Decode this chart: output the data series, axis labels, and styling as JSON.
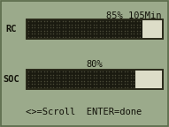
{
  "bg_color": "#9baa8b",
  "border_color": "#5a6a4a",
  "bar_fill_color": "#1a1a10",
  "bar_dot_color": "#4a4a38",
  "bar_empty_color": "#ddddc8",
  "bar_border_color": "#2a2a1a",
  "rc_label": "RC",
  "rc_percent": 85,
  "rc_text": "85% 105Min",
  "soc_label": "SOC",
  "soc_percent": 80,
  "soc_text": "80%",
  "bottom_text": "<>=Scroll  ENTER=done",
  "text_color": "#111108",
  "font_size": 7.5,
  "fig_width": 1.91,
  "fig_height": 1.44,
  "dpi": 100
}
